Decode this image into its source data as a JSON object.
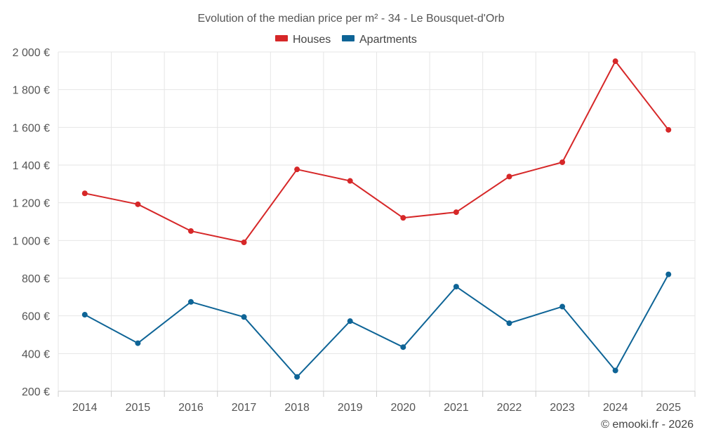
{
  "chart_data": {
    "type": "line",
    "title": "Evolution of the median price per m² - 34 - Le Bousquet-d'Orb",
    "xlabel": "",
    "ylabel": "",
    "categories": [
      "2014",
      "2015",
      "2016",
      "2017",
      "2018",
      "2019",
      "2020",
      "2021",
      "2022",
      "2023",
      "2024",
      "2025"
    ],
    "ylim": [
      200,
      2000
    ],
    "yticks": [
      200,
      400,
      600,
      800,
      1000,
      1200,
      1400,
      1600,
      1800,
      2000
    ],
    "ytick_labels": [
      "200 €",
      "400 €",
      "600 €",
      "800 €",
      "1 000 €",
      "1 200 €",
      "1 400 €",
      "1 600 €",
      "1 800 €",
      "2 000 €"
    ],
    "grid": true,
    "legend_position": "top-center",
    "series": [
      {
        "name": "Houses",
        "color": "#d62728",
        "values": [
          1250,
          1192,
          1050,
          990,
          1377,
          1316,
          1120,
          1150,
          1339,
          1415,
          1951,
          1587
        ]
      },
      {
        "name": "Apartments",
        "color": "#0e6496",
        "values": [
          606,
          455,
          674,
          594,
          276,
          572,
          434,
          755,
          561,
          649,
          310,
          820
        ]
      }
    ]
  },
  "credit": "© emooki.fr - 2026"
}
